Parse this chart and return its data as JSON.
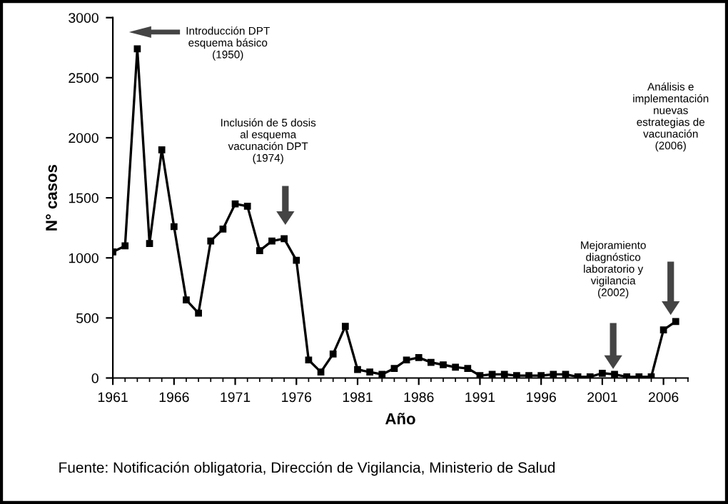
{
  "chart_data": {
    "type": "line",
    "xlabel": "Año",
    "ylabel": "N° casos",
    "x": [
      1961,
      1962,
      1963,
      1964,
      1965,
      1966,
      1967,
      1968,
      1969,
      1970,
      1971,
      1972,
      1973,
      1974,
      1975,
      1976,
      1977,
      1978,
      1979,
      1980,
      1981,
      1982,
      1983,
      1984,
      1985,
      1986,
      1987,
      1988,
      1989,
      1990,
      1991,
      1992,
      1993,
      1994,
      1995,
      1996,
      1997,
      1998,
      1999,
      2000,
      2001,
      2002,
      2003,
      2004,
      2005,
      2006,
      2007
    ],
    "series": [
      {
        "color": "#000000",
        "values": [
          1050,
          1100,
          2740,
          1120,
          1900,
          1260,
          650,
          540,
          1140,
          1240,
          1450,
          1430,
          1060,
          1140,
          1160,
          980,
          150,
          50,
          200,
          430,
          70,
          50,
          30,
          80,
          150,
          170,
          130,
          110,
          90,
          80,
          20,
          30,
          30,
          20,
          20,
          20,
          30,
          30,
          10,
          10,
          40,
          30,
          10,
          10,
          10,
          400,
          470
        ]
      }
    ],
    "xlim": [
      1961,
      2008
    ],
    "xticks": [
      1961,
      1966,
      1971,
      1976,
      1981,
      1986,
      1991,
      1996,
      2001,
      2006
    ],
    "ylim": [
      0,
      3000
    ],
    "yticks": [
      0,
      500,
      1000,
      1500,
      2000,
      2500,
      3000
    ],
    "grid": false,
    "legend": false,
    "marker": "square",
    "line_style": "solid",
    "annotations": [
      "Introducción DPT\nesquema básico\n(1950)",
      "Inclusión de 5 dosis\nal esquema\nvacunación DPT\n(1974)",
      "Mejoramiento\ndiagnóstico\nlaboratorio y\nvigilancia\n(2002)",
      "Análisis e\nimplementación\nnuevas\nestrategias de\nvacunación\n(2006)",
      "Fuente: Notificación obligatoria, Dirección de Vigilancia, Ministerio de Salud"
    ]
  }
}
